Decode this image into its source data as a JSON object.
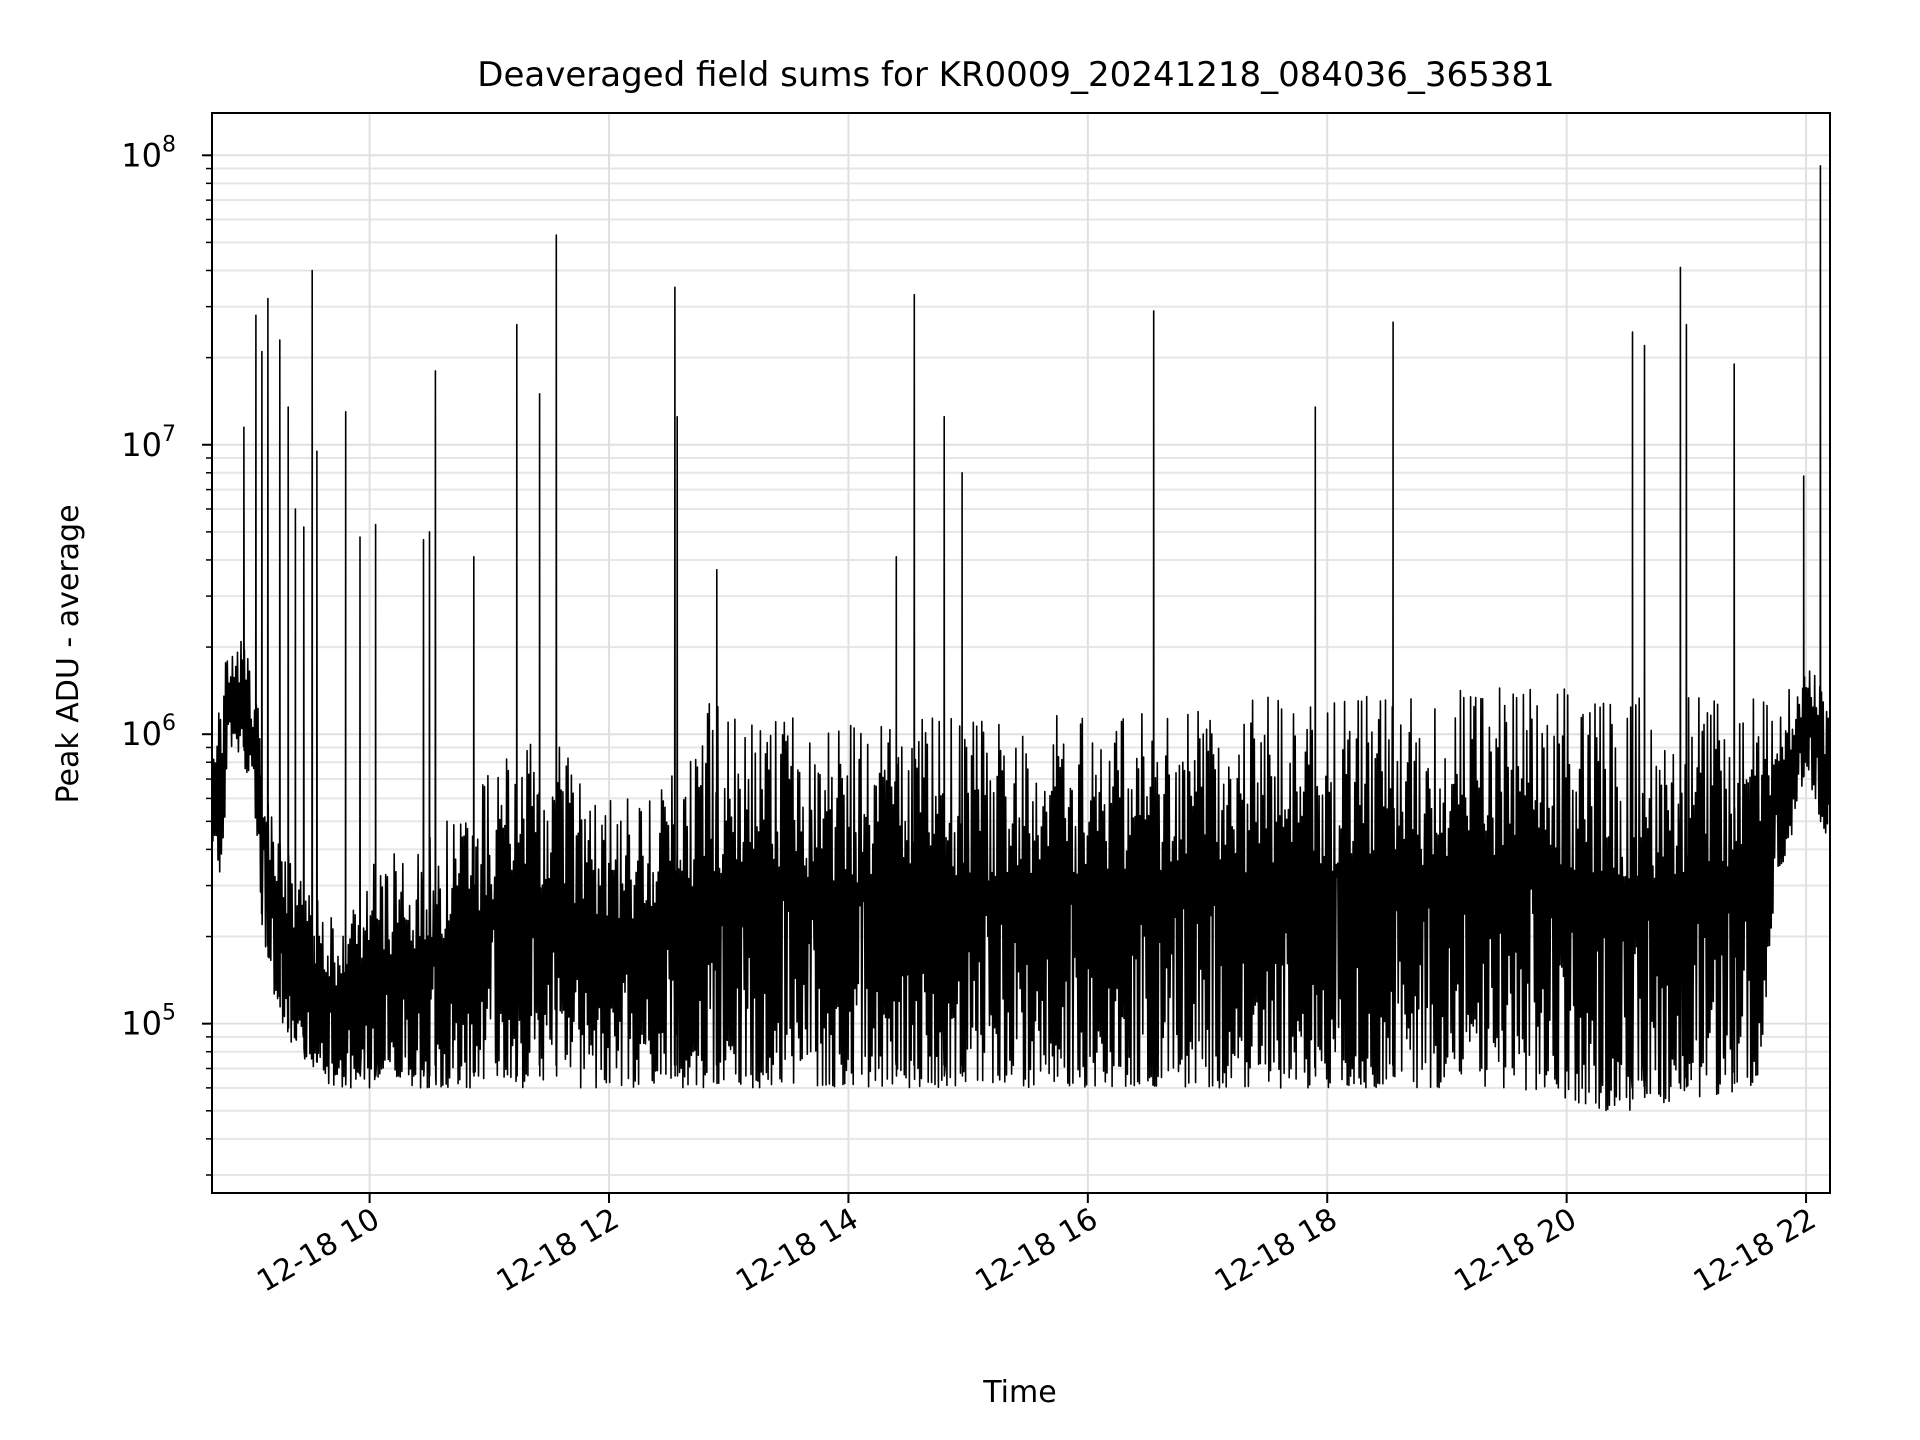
{
  "chart_data": {
    "type": "line",
    "title": "Deaveraged field sums for KR0009_20241218_084036_365381",
    "xlabel": "Time",
    "ylabel": "Peak ADU - average",
    "x_range": [
      "2024-12-18 08:41",
      "2024-12-18 22:12"
    ],
    "ylim": [
      26000,
      140000000
    ],
    "y_scale": "log",
    "grid": true,
    "legend": "none",
    "line_color": "#000000",
    "x_ticks": [
      "12-18 10",
      "12-18 12",
      "12-18 14",
      "12-18 16",
      "12-18 18",
      "12-18 20",
      "12-18 22"
    ],
    "y_ticks": [
      {
        "base": "10",
        "exp": "5",
        "value": 100000
      },
      {
        "base": "10",
        "exp": "6",
        "value": 1000000
      },
      {
        "base": "10",
        "exp": "7",
        "value": 10000000
      },
      {
        "base": "10",
        "exp": "8",
        "value": 100000000
      }
    ],
    "series": [
      {
        "x_hours": [
          8.69,
          8.75,
          8.85,
          8.95,
          9.05,
          9.1,
          9.2,
          9.3,
          9.4,
          9.5,
          9.6,
          9.7,
          9.8,
          9.9,
          10.0,
          10.2,
          10.4,
          10.6,
          10.8,
          11.0,
          11.2,
          11.4,
          11.6,
          11.8,
          12.0,
          12.2,
          12.4,
          12.6,
          12.8,
          13.0,
          13.5,
          14.0,
          14.5,
          15.0,
          15.5,
          16.0,
          16.5,
          17.0,
          17.5,
          18.0,
          18.5,
          19.0,
          19.5,
          20.0,
          20.3,
          20.6,
          21.0,
          21.3,
          21.6,
          21.75,
          21.85,
          22.0,
          22.12,
          22.2
        ],
        "envelope_high": [
          1100000,
          1400000,
          2400000,
          2100000,
          1500000,
          900000,
          600000,
          400000,
          350000,
          300000,
          250000,
          260000,
          250000,
          300000,
          350000,
          400000,
          450000,
          500000,
          600000,
          800000,
          900000,
          1000000,
          900000,
          700000,
          600000,
          600000,
          650000,
          800000,
          1300000,
          1200000,
          1200000,
          1150000,
          1200000,
          1150000,
          1200000,
          1250000,
          1300000,
          1300000,
          1350000,
          1350000,
          1400000,
          1450000,
          1500000,
          1450000,
          1400000,
          1350000,
          1400000,
          1450000,
          1400000,
          1300000,
          1500000,
          1900000,
          1500000,
          1300000
        ],
        "envelope_low": [
          360000,
          320000,
          900000,
          800000,
          500000,
          200000,
          120000,
          90000,
          80000,
          70000,
          65000,
          60000,
          60000,
          60000,
          60000,
          60000,
          60000,
          60000,
          60000,
          60000,
          60000,
          60000,
          60000,
          60000,
          60000,
          60000,
          60000,
          60000,
          60000,
          60000,
          60000,
          60000,
          60000,
          60000,
          60000,
          60000,
          60000,
          60000,
          60000,
          60000,
          60000,
          60000,
          60000,
          55000,
          50000,
          50000,
          55000,
          55000,
          60000,
          300000,
          400000,
          700000,
          500000,
          400000
        ],
        "spikes": [
          [
            8.95,
            11500000
          ],
          [
            9.05,
            28000000
          ],
          [
            9.1,
            21000000
          ],
          [
            9.15,
            32000000
          ],
          [
            9.25,
            23000000
          ],
          [
            9.32,
            13500000
          ],
          [
            9.38,
            6000000
          ],
          [
            9.45,
            5200000
          ],
          [
            9.52,
            40000000
          ],
          [
            9.56,
            9500000
          ],
          [
            9.8,
            13000000
          ],
          [
            9.92,
            4800000
          ],
          [
            10.05,
            5300000
          ],
          [
            10.45,
            4700000
          ],
          [
            10.5,
            5000000
          ],
          [
            10.55,
            18000000
          ],
          [
            10.87,
            4100000
          ],
          [
            11.23,
            26000000
          ],
          [
            11.42,
            15000000
          ],
          [
            11.56,
            53000000
          ],
          [
            12.55,
            35000000
          ],
          [
            12.57,
            12500000
          ],
          [
            12.9,
            3700000
          ],
          [
            14.4,
            4100000
          ],
          [
            14.55,
            33000000
          ],
          [
            14.8,
            12500000
          ],
          [
            14.95,
            8000000
          ],
          [
            16.55,
            29000000
          ],
          [
            17.9,
            13500000
          ],
          [
            18.55,
            26500000
          ],
          [
            20.55,
            24500000
          ],
          [
            20.65,
            22000000
          ],
          [
            20.95,
            41000000
          ],
          [
            21.0,
            26000000
          ],
          [
            21.4,
            19000000
          ],
          [
            21.98,
            7800000
          ],
          [
            22.12,
            92000000
          ]
        ]
      }
    ]
  }
}
